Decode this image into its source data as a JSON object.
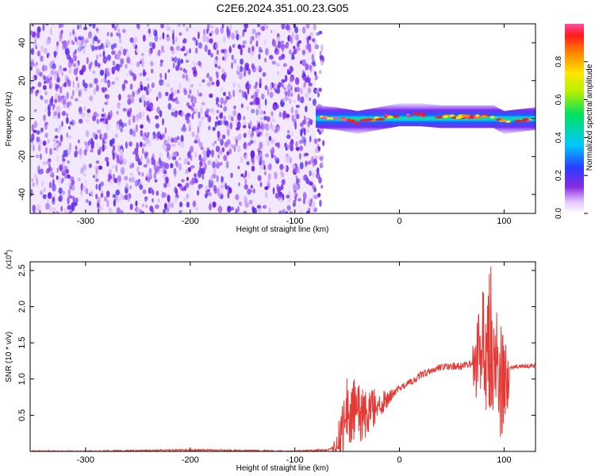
{
  "title": "C2E6.2024.351.00.23.G05",
  "chart_data": [
    {
      "type": "heatmap",
      "xlabel": "Height of straight line (km)",
      "ylabel": "Frequency (Hz)",
      "xlim": [
        -353,
        130
      ],
      "ylim": [
        -50,
        50
      ],
      "x_ticks": [
        -300,
        -200,
        -100,
        0,
        100
      ],
      "y_ticks": [
        -40,
        -20,
        0,
        20,
        40
      ],
      "colorbar": {
        "label": "Normalized spectral amplitude",
        "range": [
          0,
          1
        ],
        "ticks": [
          0.0,
          0.2,
          0.4,
          0.6,
          0.8
        ],
        "colormap": "rainbow (white, purple, blue, cyan, green, yellow, orange, red, pink)"
      },
      "noise_region_x": [
        -353,
        -80
      ],
      "signal_band": {
        "x": [
          -80,
          -60,
          -40,
          -20,
          0,
          20,
          40,
          60,
          80,
          90,
          100,
          130
        ],
        "center_hz": [
          1,
          0,
          -2,
          0,
          2,
          2,
          1,
          1,
          1,
          1,
          -2,
          0
        ]
      }
    },
    {
      "type": "line",
      "xlabel": "Height of straight line (km)",
      "ylabel": "SNR (10 * v/v)",
      "y_multiplier": "(x10",
      "y_multiplier_exp": "4",
      "y_multiplier_close": ")",
      "xlim": [
        -353,
        130
      ],
      "ylim": [
        0,
        2.62
      ],
      "x_ticks": [
        -300,
        -200,
        -100,
        0,
        100
      ],
      "y_ticks": [
        0.5,
        1.0,
        1.5,
        2.0,
        2.5
      ],
      "series": [
        {
          "color": "#e53935",
          "x": [
            -353,
            -300,
            -200,
            -100,
            -70,
            -60,
            -55,
            -50,
            -45,
            -40,
            -30,
            -20,
            -10,
            0,
            10,
            20,
            30,
            40,
            50,
            60,
            70,
            75,
            80,
            85,
            90,
            95,
            100,
            105,
            110,
            120,
            130
          ],
          "y": [
            0.0,
            0.0,
            0.02,
            0.0,
            0.02,
            0.05,
            0.3,
            0.6,
            0.55,
            0.5,
            0.55,
            0.65,
            0.75,
            0.88,
            0.95,
            1.05,
            1.12,
            1.17,
            1.18,
            1.18,
            1.2,
            1.3,
            1.6,
            1.4,
            1.5,
            1.0,
            0.9,
            1.15,
            1.17,
            1.18,
            1.18
          ]
        }
      ]
    }
  ]
}
